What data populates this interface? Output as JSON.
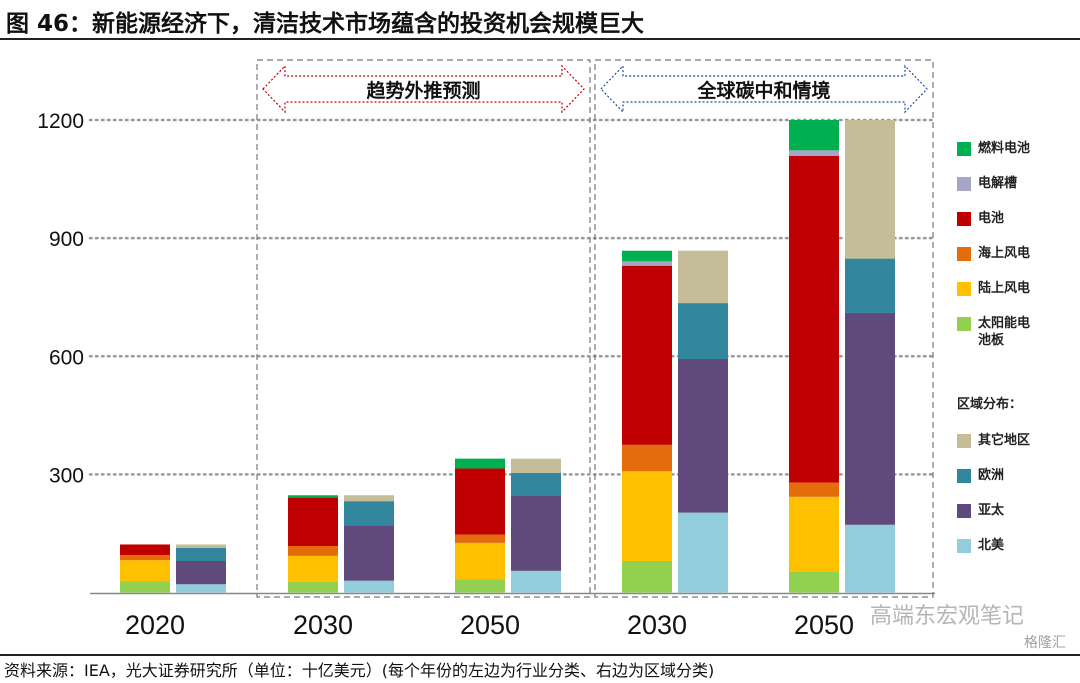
{
  "title": "图 46：新能源经济下，清洁技术市场蕴含的投资机会规模巨大",
  "source": "资料来源：IEA，光大证券研究所（单位：十亿美元）(每个年份的左边为行业分类、右边为区域分类)",
  "watermark": "高端东宏观笔记",
  "watermark2": "格隆汇",
  "chart_data": {
    "type": "bar",
    "stacked": true,
    "ylim": [
      0,
      1200
    ],
    "yticks": [
      300,
      600,
      900,
      1200
    ],
    "grid": true,
    "legend_position": "right",
    "scenarios": [
      {
        "label": "",
        "groups": [
          0
        ]
      },
      {
        "label": "趋势外推预测",
        "groups": [
          1,
          2
        ]
      },
      {
        "label": "全球碳中和情境",
        "groups": [
          3,
          4
        ]
      }
    ],
    "groups": [
      "2020",
      "2030",
      "2050",
      "2030",
      "2050"
    ],
    "technology_series": [
      {
        "name": "太阳能电池板",
        "color": "#92d050",
        "values": [
          29,
          27,
          33,
          80,
          54
        ]
      },
      {
        "name": "陆上风电",
        "color": "#ffc000",
        "values": [
          53,
          66,
          93,
          228,
          189
        ]
      },
      {
        "name": "海上风电",
        "color": "#e46c0a",
        "values": [
          13,
          25,
          21,
          67,
          36
        ]
      },
      {
        "name": "电池",
        "color": "#c00000",
        "values": [
          27,
          123,
          168,
          455,
          830
        ]
      },
      {
        "name": "电解槽",
        "color": "#a6a6c8",
        "values": [
          0,
          0,
          0,
          11,
          14
        ]
      },
      {
        "name": "燃料电池",
        "color": "#00b050",
        "values": [
          0,
          6,
          25,
          27,
          77
        ]
      }
    ],
    "region_legend_title": "区域分布：",
    "region_series": [
      {
        "name": "北美",
        "color": "#92cddc",
        "values": [
          21,
          30,
          55,
          203,
          172
        ]
      },
      {
        "name": "亚太",
        "color": "#604a7b",
        "values": [
          59,
          141,
          192,
          390,
          538
        ]
      },
      {
        "name": "欧洲",
        "color": "#31859c",
        "values": [
          33,
          61,
          57,
          142,
          138
        ]
      },
      {
        "name": "其它地区",
        "color": "#c4bd97",
        "values": [
          9,
          15,
          36,
          133,
          352
        ]
      }
    ]
  }
}
